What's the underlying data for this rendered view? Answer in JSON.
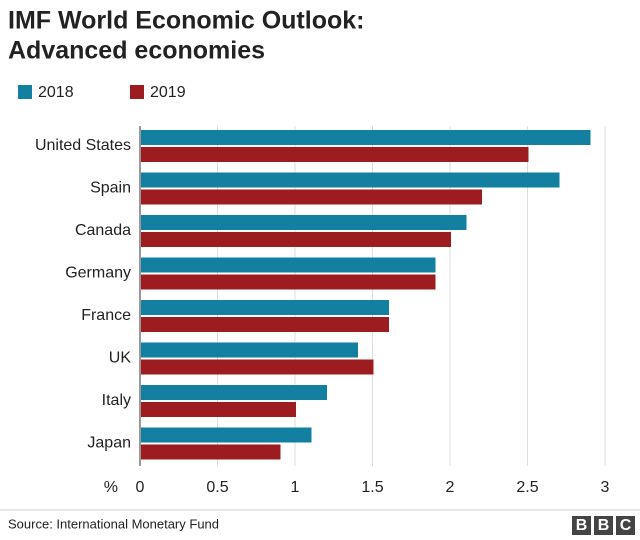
{
  "chart_data": {
    "type": "bar",
    "orientation": "horizontal",
    "title": "IMF World Economic Outlook: Advanced economies",
    "x_label": "%",
    "categories": [
      "United States",
      "Spain",
      "Canada",
      "Germany",
      "France",
      "UK",
      "Italy",
      "Japan"
    ],
    "series": [
      {
        "name": "2018",
        "color": "#1380a1",
        "values": [
          2.9,
          2.7,
          2.1,
          1.9,
          1.6,
          1.4,
          1.2,
          1.1
        ]
      },
      {
        "name": "2019",
        "color": "#9d1c20",
        "values": [
          2.5,
          2.2,
          2.0,
          1.9,
          1.6,
          1.5,
          1.0,
          0.9
        ]
      }
    ],
    "xlim": [
      0,
      3
    ],
    "xticks": [
      0,
      0.5,
      1,
      1.5,
      2,
      2.5,
      3
    ],
    "grid": true,
    "source": "Source: International Monetary Fund",
    "logo": [
      "B",
      "B",
      "C"
    ]
  }
}
